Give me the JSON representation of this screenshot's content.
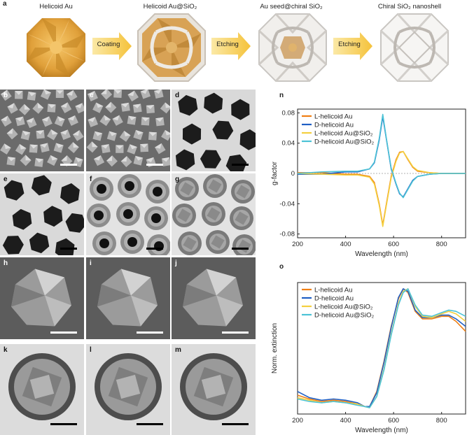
{
  "panel_a": {
    "letter": "a",
    "stages": [
      "Helicoid Au",
      "Helicoid Au@SiO₂",
      "Au seed@chiral SiO₂",
      "Chiral SiO₂ nanoshell"
    ],
    "arrows": [
      "Coating",
      "Etching",
      "Etching"
    ]
  },
  "micrographs": [
    {
      "letter": "b",
      "type": "sem-low"
    },
    {
      "letter": "c",
      "type": "sem-low"
    },
    {
      "letter": "d",
      "type": "tem-au"
    },
    {
      "letter": "e",
      "type": "tem-au"
    },
    {
      "letter": "f",
      "type": "tem-seed"
    },
    {
      "letter": "g",
      "type": "tem-shell"
    },
    {
      "letter": "h",
      "type": "sem-high"
    },
    {
      "letter": "i",
      "type": "sem-high"
    },
    {
      "letter": "j",
      "type": "sem-high"
    },
    {
      "letter": "k",
      "type": "tem-high"
    },
    {
      "letter": "l",
      "type": "tem-high"
    },
    {
      "letter": "m",
      "type": "tem-high"
    }
  ],
  "chart_data": [
    {
      "letter": "n",
      "type": "line",
      "xlabel": "Wavelength (nm)",
      "ylabel": "g-factor",
      "xlim": [
        200,
        900
      ],
      "ylim": [
        -0.085,
        0.085
      ],
      "xticks": [
        200,
        400,
        600,
        800
      ],
      "yticks": [
        0.08,
        0.04,
        0,
        -0.04,
        -0.08
      ],
      "ytick_labels": [
        "0.08",
        "0.04",
        "0",
        "-0.04",
        "-0.08"
      ],
      "legend_position": "top-left",
      "series": [
        {
          "name": "L-helicoid Au",
          "color": "#f07f13",
          "x": [
            200,
            300,
            400,
            450,
            500,
            520,
            540,
            555,
            570,
            590,
            610,
            625,
            640,
            660,
            680,
            700,
            750,
            800,
            850,
            900
          ],
          "y": [
            0.001,
            0.001,
            -0.001,
            -0.001,
            -0.004,
            -0.012,
            -0.04,
            -0.068,
            -0.04,
            -0.004,
            0.018,
            0.028,
            0.029,
            0.018,
            0.008,
            0.003,
            0.001,
            0.0,
            0.0,
            0.0
          ]
        },
        {
          "name": "D-helicoid Au",
          "color": "#1f5fc4",
          "x": [
            200,
            300,
            400,
            450,
            500,
            520,
            540,
            555,
            570,
            590,
            610,
            625,
            640,
            660,
            680,
            700,
            750,
            800,
            850,
            900
          ],
          "y": [
            -0.001,
            -0.001,
            0.002,
            0.002,
            0.006,
            0.014,
            0.044,
            0.075,
            0.045,
            0.006,
            -0.014,
            -0.027,
            -0.031,
            -0.02,
            -0.009,
            -0.004,
            -0.001,
            0.0,
            0.0,
            0.0
          ]
        },
        {
          "name": "L-helicoid Au@SiO₂",
          "color": "#f4d03f",
          "x": [
            200,
            300,
            400,
            450,
            500,
            520,
            540,
            555,
            570,
            590,
            610,
            625,
            640,
            660,
            680,
            700,
            750,
            800,
            850,
            900
          ],
          "y": [
            0.0,
            -0.001,
            -0.002,
            -0.002,
            -0.005,
            -0.014,
            -0.042,
            -0.07,
            -0.042,
            -0.006,
            0.016,
            0.027,
            0.029,
            0.019,
            0.009,
            0.004,
            0.001,
            0.0,
            0.0,
            0.0
          ]
        },
        {
          "name": "D-helicoid Au@SiO₂",
          "color": "#4cc3d6",
          "x": [
            200,
            300,
            400,
            450,
            500,
            520,
            540,
            555,
            570,
            590,
            610,
            625,
            640,
            660,
            680,
            700,
            750,
            800,
            850,
            900
          ],
          "y": [
            0.0,
            0.002,
            0.003,
            0.003,
            0.006,
            0.015,
            0.046,
            0.078,
            0.046,
            0.007,
            -0.013,
            -0.026,
            -0.032,
            -0.021,
            -0.01,
            -0.004,
            -0.001,
            0.0,
            0.0,
            0.0
          ]
        }
      ]
    },
    {
      "letter": "o",
      "type": "line",
      "xlabel": "Wavelength (nm)",
      "ylabel": "Norm. extinction",
      "xlim": [
        200,
        900
      ],
      "ylim": [
        0,
        1.05
      ],
      "xticks": [
        200,
        400,
        600,
        800
      ],
      "legend_position": "top-left",
      "series": [
        {
          "name": "L-helicoid Au",
          "color": "#f07f13",
          "x": [
            200,
            250,
            300,
            350,
            400,
            450,
            480,
            500,
            530,
            560,
            590,
            620,
            640,
            660,
            690,
            720,
            760,
            800,
            830,
            860,
            900
          ],
          "y": [
            0.15,
            0.12,
            0.1,
            0.11,
            0.1,
            0.08,
            0.06,
            0.06,
            0.18,
            0.42,
            0.7,
            0.92,
            1.0,
            0.97,
            0.82,
            0.76,
            0.76,
            0.78,
            0.78,
            0.74,
            0.66
          ]
        },
        {
          "name": "D-helicoid Au",
          "color": "#1f5fc4",
          "x": [
            200,
            250,
            300,
            350,
            400,
            450,
            480,
            500,
            530,
            560,
            590,
            620,
            640,
            660,
            690,
            720,
            760,
            800,
            830,
            860,
            900
          ],
          "y": [
            0.18,
            0.13,
            0.11,
            0.12,
            0.11,
            0.09,
            0.06,
            0.06,
            0.17,
            0.41,
            0.69,
            0.93,
            1.0,
            0.98,
            0.83,
            0.77,
            0.77,
            0.79,
            0.79,
            0.76,
            0.7
          ]
        },
        {
          "name": "L-helicoid Au@SiO₂",
          "color": "#f4d03f",
          "x": [
            200,
            250,
            300,
            350,
            400,
            450,
            480,
            500,
            530,
            560,
            590,
            620,
            640,
            660,
            690,
            720,
            760,
            800,
            830,
            860,
            900
          ],
          "y": [
            0.13,
            0.11,
            0.09,
            0.1,
            0.09,
            0.08,
            0.06,
            0.05,
            0.14,
            0.36,
            0.64,
            0.88,
            0.98,
            1.0,
            0.86,
            0.78,
            0.77,
            0.8,
            0.82,
            0.8,
            0.74
          ]
        },
        {
          "name": "D-helicoid Au@SiO₂",
          "color": "#4cc3d6",
          "x": [
            200,
            250,
            300,
            350,
            400,
            450,
            480,
            500,
            530,
            560,
            590,
            620,
            640,
            660,
            690,
            720,
            760,
            800,
            830,
            860,
            900
          ],
          "y": [
            0.12,
            0.1,
            0.09,
            0.1,
            0.09,
            0.07,
            0.06,
            0.05,
            0.14,
            0.35,
            0.63,
            0.87,
            0.97,
            1.0,
            0.87,
            0.79,
            0.78,
            0.81,
            0.83,
            0.82,
            0.78
          ]
        }
      ]
    }
  ]
}
